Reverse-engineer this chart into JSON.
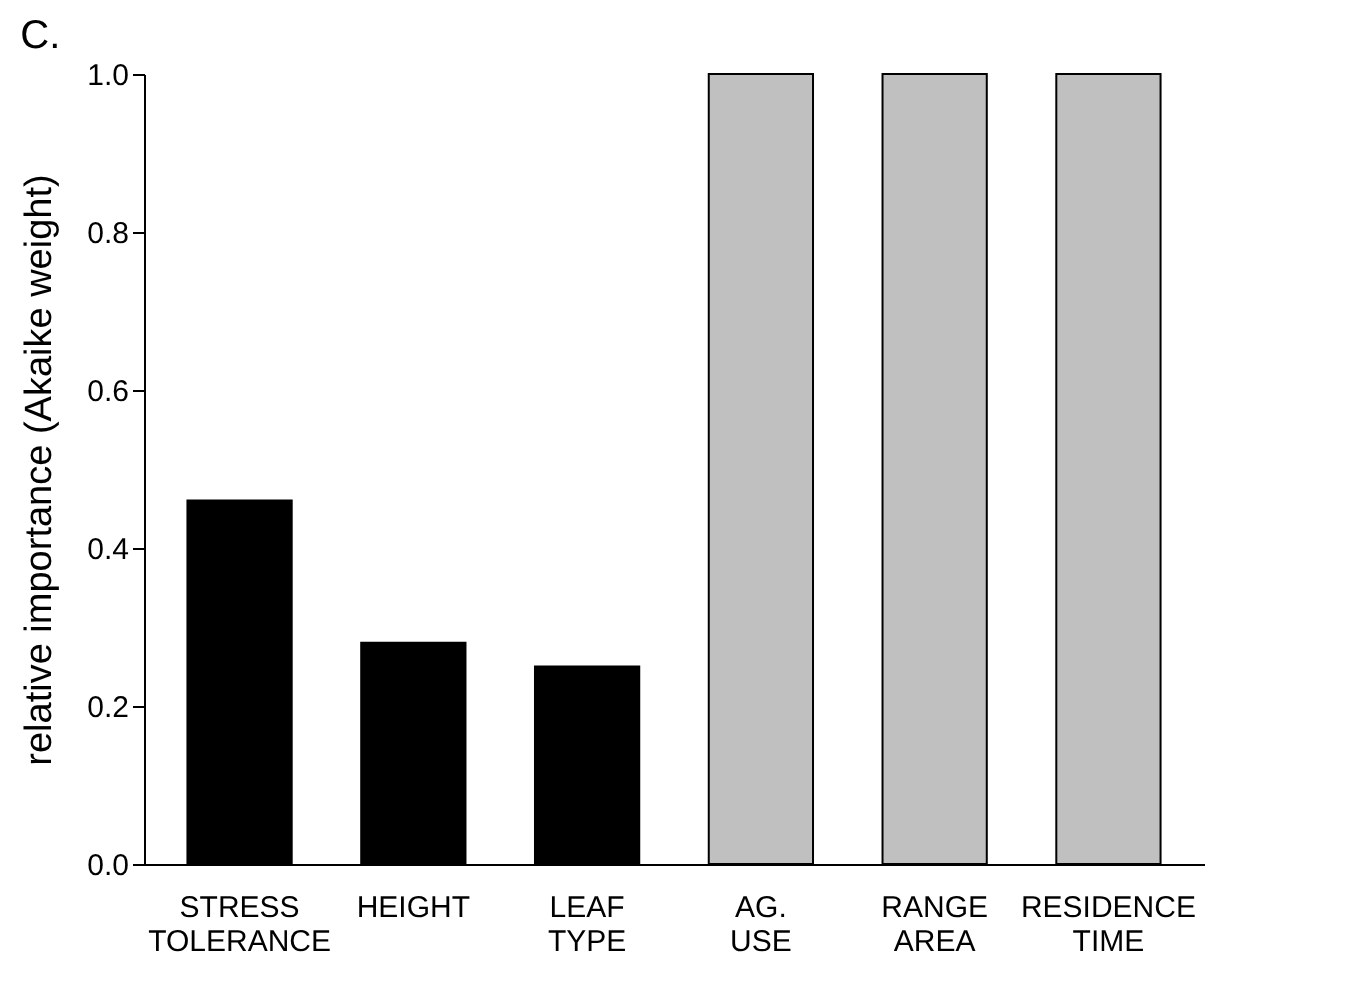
{
  "chart_data": {
    "type": "bar",
    "title": "C.",
    "ylabel": "relative importance (Akaike weight)",
    "categories": [
      "STRESS TOLERANCE",
      "HEIGHT",
      "LEAF TYPE",
      "AG. USE",
      "RANGE AREA",
      "RESIDENCE TIME"
    ],
    "values": [
      0.46,
      0.28,
      0.25,
      1.0,
      1.0,
      1.0
    ],
    "colors": [
      "#000000",
      "#000000",
      "#000000",
      "#c0c0c0",
      "#c0c0c0",
      "#c0c0c0"
    ],
    "ylim": [
      0,
      1
    ],
    "yticks": [
      {
        "value": 0,
        "label": "0.0"
      },
      {
        "value": 0.2,
        "label": "0.2"
      },
      {
        "value": 0.4,
        "label": "0.4"
      },
      {
        "value": 0.6,
        "label": "0.6"
      },
      {
        "value": 0.8,
        "label": "0.8"
      },
      {
        "value": 1,
        "label": "1.0"
      }
    ],
    "grid": false
  }
}
